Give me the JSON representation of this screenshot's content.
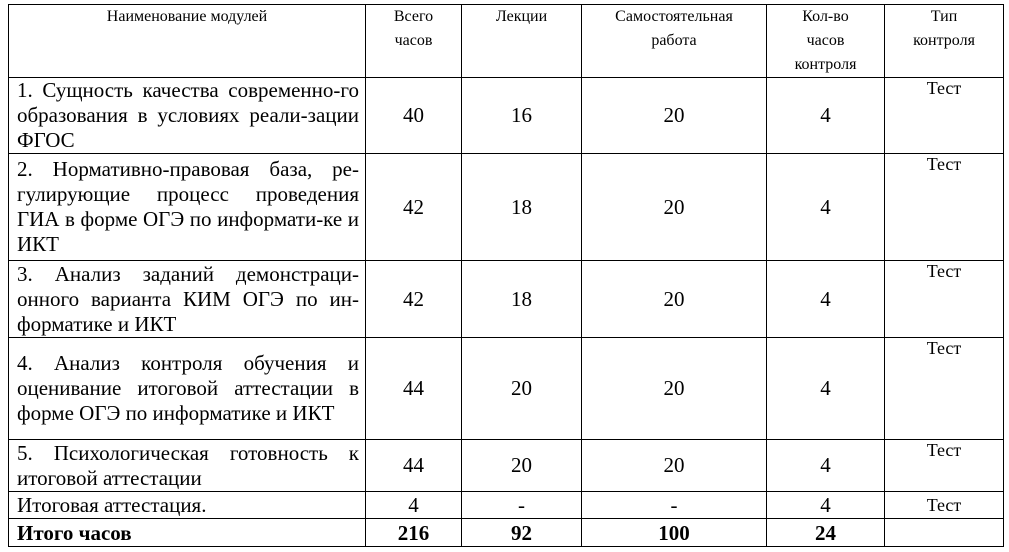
{
  "header": {
    "module_name": "Наименование модулей",
    "total_hours": "Всего часов",
    "lectures": "Лекции",
    "self_work": "Самостоятельная работа",
    "control_hours": "Кол-во часов контроля",
    "control_type": "Тип контроля"
  },
  "rows": [
    {
      "name": "1. Сущность качества современно-го образования в условиях реали-зации ФГОС",
      "total": "40",
      "lectures": "16",
      "self_work": "20",
      "control_hours": "4",
      "control_type": "Тест"
    },
    {
      "name": "2. Нормативно-правовая база, ре-гулирующие процесс проведения ГИА в форме ОГЭ по информати-ке и ИКТ",
      "total": "42",
      "lectures": "18",
      "self_work": "20",
      "control_hours": "4",
      "control_type": "Тест"
    },
    {
      "name": "3. Анализ заданий демонстраци-онного варианта КИМ ОГЭ по ин-форматике и ИКТ",
      "total": "42",
      "lectures": "18",
      "self_work": "20",
      "control_hours": "4",
      "control_type": "Тест"
    },
    {
      "name": "4. Анализ контроля обучения и оценивание итоговой аттестации в форме ОГЭ по информатике и ИКТ",
      "total": "44",
      "lectures": "20",
      "self_work": "20",
      "control_hours": "4",
      "control_type": "Тест"
    },
    {
      "name": "5. Психологическая готовность к итоговой аттестации",
      "total": "44",
      "lectures": "20",
      "self_work": "20",
      "control_hours": "4",
      "control_type": "Тест"
    },
    {
      "name": "Итоговая аттестация.",
      "total": "4",
      "lectures": "-",
      "self_work": "-",
      "control_hours": "4",
      "control_type": "Тест"
    }
  ],
  "totals": {
    "name": "Итого часов",
    "total": "216",
    "lectures": "92",
    "self_work": "100",
    "control_hours": "24",
    "control_type": ""
  }
}
